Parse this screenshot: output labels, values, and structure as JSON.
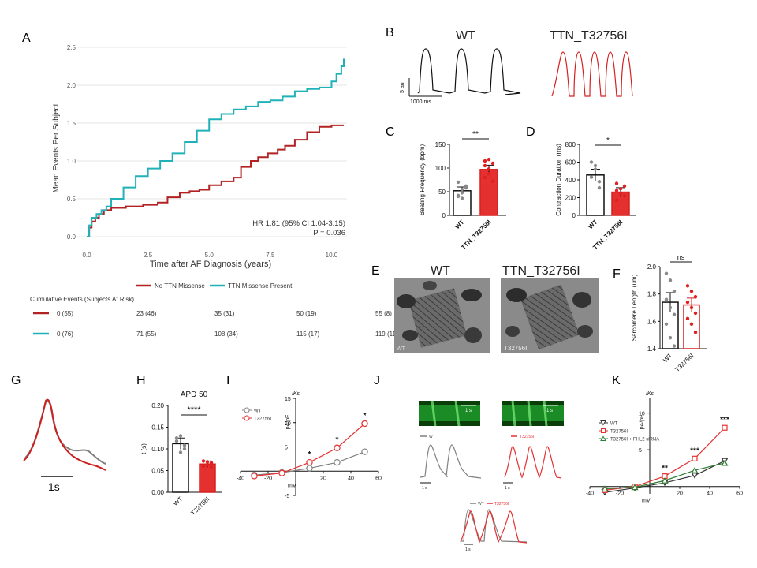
{
  "panel_labels": {
    "A": "A",
    "B": "B",
    "C": "C",
    "D": "D",
    "E": "E",
    "F": "F",
    "G": "G",
    "H": "H",
    "I": "I",
    "J": "J",
    "K": "K"
  },
  "colors": {
    "red": "#b22222",
    "cyan": "#20b2b8",
    "bright_red": "#e53030",
    "gray": "#808080",
    "dark_green": "#2e7d32"
  },
  "chart_data": [
    {
      "id": "A",
      "type": "line",
      "xlabel": "Time after AF Diagnosis (years)",
      "ylabel": "Mean Events Per Subject",
      "xlim": [
        0,
        10.5
      ],
      "ylim": [
        0,
        2.5
      ],
      "x_ticks": [
        "0.0",
        "2.5",
        "5.0",
        "7.5",
        "10.0"
      ],
      "y_ticks": [
        "0.0",
        "0.5",
        "1.0",
        "1.5",
        "2.0",
        "2.5"
      ],
      "grid": true,
      "annotation_hr": "HR 1.81 (95% CI 1.04-3.15)",
      "annotation_p": "P = 0.036",
      "legend_position": "bottom-center",
      "series": [
        {
          "name": "No TTN Missense",
          "color": "#b22222",
          "x": [
            0,
            0.1,
            0.2,
            0.35,
            0.5,
            0.7,
            1.0,
            1.6,
            2.3,
            2.9,
            3.3,
            3.8,
            4.2,
            4.6,
            5.0,
            5.5,
            6.0,
            6.3,
            6.7,
            7.0,
            7.4,
            7.8,
            8.1,
            8.5,
            9.0,
            9.5,
            10.0,
            10.5
          ],
          "y": [
            0,
            0.12,
            0.2,
            0.25,
            0.3,
            0.35,
            0.38,
            0.4,
            0.42,
            0.45,
            0.52,
            0.58,
            0.6,
            0.62,
            0.68,
            0.73,
            0.78,
            0.92,
            1.0,
            1.05,
            1.1,
            1.15,
            1.2,
            1.28,
            1.38,
            1.45,
            1.47,
            1.47
          ]
        },
        {
          "name": "TTN Missense Present",
          "color": "#20b2b8",
          "x": [
            0,
            0.1,
            0.2,
            0.4,
            0.6,
            0.8,
            1.0,
            1.5,
            2.0,
            2.5,
            3.0,
            3.5,
            4.0,
            4.5,
            5.0,
            5.5,
            6.0,
            6.5,
            7.0,
            7.5,
            8.0,
            8.5,
            9.0,
            9.5,
            10.0,
            10.2,
            10.4,
            10.5
          ],
          "y": [
            0,
            0.15,
            0.25,
            0.3,
            0.35,
            0.4,
            0.5,
            0.65,
            0.8,
            0.9,
            1.0,
            1.1,
            1.25,
            1.4,
            1.55,
            1.62,
            1.68,
            1.72,
            1.78,
            1.8,
            1.85,
            1.92,
            1.95,
            1.97,
            2.05,
            2.15,
            2.25,
            2.35
          ]
        }
      ],
      "risk_table": {
        "title": "Cumulative Events (Subjects At Risk)",
        "rows": [
          {
            "color": "#b22222",
            "cells": [
              "0 (55)",
              "23 (46)",
              "35 (31)",
              "50 (19)",
              "55 (8)"
            ]
          },
          {
            "color": "#20b2b8",
            "cells": [
              "0 (76)",
              "71 (55)",
              "108 (34)",
              "115 (17)",
              "119 (11)"
            ]
          }
        ]
      }
    },
    {
      "id": "C",
      "type": "bar",
      "ylabel": "Beating Frequency (bpm)",
      "categories": [
        "WT",
        "TTN_T32756I"
      ],
      "values": [
        52,
        97
      ],
      "errors": [
        8,
        9
      ],
      "points": [
        [
          42,
          36,
          58,
          70,
          48,
          62,
          40,
          55
        ],
        [
          80,
          98,
          110,
          115,
          88,
          72,
          105,
          118
        ]
      ],
      "ylim": [
        0,
        150
      ],
      "y_ticks": [
        "0",
        "50",
        "100",
        "150"
      ],
      "significance": "**"
    },
    {
      "id": "D",
      "type": "bar",
      "ylabel": "Contraction Duration (ms)",
      "categories": [
        "WT",
        "TTN_T32756I"
      ],
      "values": [
        455,
        262
      ],
      "errors": [
        65,
        50
      ],
      "points": [
        [
          600,
          520,
          310,
          430,
          560,
          380
        ],
        [
          360,
          300,
          220,
          170,
          250,
          330,
          280
        ]
      ],
      "ylim": [
        0,
        800
      ],
      "y_ticks": [
        "0",
        "200",
        "400",
        "600",
        "800"
      ],
      "significance": "*"
    },
    {
      "id": "F",
      "type": "bar",
      "ylabel": "Sarcomere Length (um)",
      "categories": [
        "WT",
        "T32756I"
      ],
      "values": [
        1.74,
        1.72
      ],
      "errors": [
        0.07,
        0.05
      ],
      "points": [
        [
          1.95,
          1.9,
          1.82,
          1.76,
          1.7,
          1.65,
          1.58,
          1.48,
          1.42
        ],
        [
          1.86,
          1.82,
          1.78,
          1.74,
          1.7,
          1.66,
          1.62,
          1.58,
          1.52
        ]
      ],
      "ylim": [
        1.4,
        2.0
      ],
      "y_ticks": [
        "1.4",
        "1.6",
        "1.8",
        "2.0"
      ],
      "significance": "ns"
    },
    {
      "id": "H",
      "type": "bar",
      "title": "APD 50",
      "ylabel": "t (s)",
      "categories": [
        "WT",
        "T32756I"
      ],
      "values": [
        0.112,
        0.065
      ],
      "errors": [
        0.013,
        0.007
      ],
      "points": [
        [
          0.125,
          0.13,
          0.1,
          0.118,
          0.092,
          0.108
        ],
        [
          0.06,
          0.064,
          0.068,
          0.062,
          0.07,
          0.058,
          0.072
        ]
      ],
      "ylim": [
        0,
        0.2
      ],
      "y_ticks": [
        "0.00",
        "0.05",
        "0.10",
        "0.15",
        "0.20"
      ],
      "significance": "****"
    },
    {
      "id": "I",
      "type": "line",
      "ylabel": "pA/pF",
      "xlabel": "mV",
      "current_label": "IKs",
      "xlim": [
        -40,
        60
      ],
      "ylim": [
        -5,
        15
      ],
      "x_ticks": [
        "-40",
        "-20",
        "20",
        "40",
        "60"
      ],
      "y_ticks": [
        "-5",
        "5",
        "10",
        "15"
      ],
      "legend_position": "top-left",
      "stars": [
        "*",
        "*",
        "*"
      ],
      "series": [
        {
          "name": "WT",
          "color": "#808080",
          "x": [
            -30,
            -10,
            10,
            30,
            50
          ],
          "y": [
            -0.8,
            -0.3,
            0.6,
            1.8,
            4.0
          ]
        },
        {
          "name": "T32756I",
          "color": "#e53030",
          "x": [
            -30,
            -10,
            10,
            30,
            50
          ],
          "y": [
            -1.0,
            -0.4,
            1.8,
            4.8,
            9.8
          ]
        }
      ]
    },
    {
      "id": "K",
      "type": "line",
      "ylabel": "pA/pF",
      "xlabel": "mV",
      "current_label": "IKs",
      "xlim": [
        -40,
        60
      ],
      "ylim": [
        -1,
        12
      ],
      "x_ticks": [
        "-40",
        "-20",
        "20",
        "40",
        "60"
      ],
      "y_ticks": [
        "5",
        "10"
      ],
      "legend_position": "top-left",
      "stars": [
        "**",
        "***",
        "***"
      ],
      "series": [
        {
          "name": "WT",
          "color": "#333333",
          "x": [
            -30,
            -10,
            10,
            30,
            50
          ],
          "y": [
            -0.8,
            -0.2,
            0.5,
            1.5,
            3.5
          ]
        },
        {
          "name": "T32756I",
          "color": "#e53030",
          "x": [
            -30,
            -10,
            10,
            30,
            50
          ],
          "y": [
            -0.5,
            0.0,
            1.4,
            3.8,
            8.0
          ]
        },
        {
          "name": "T32756I + FHL2 siRNA",
          "color": "#2e7d32",
          "x": [
            -30,
            -10,
            10,
            30,
            50
          ],
          "y": [
            -0.3,
            -0.1,
            0.8,
            2.2,
            3.2
          ]
        }
      ]
    }
  ],
  "panel_B": {
    "wt_label": "WT",
    "mut_label": "TTN_T32756I",
    "y_scale": "5 au",
    "x_scale": "1000 ms"
  },
  "panel_E": {
    "wt_label": "WT",
    "mut_label": "TTN_T32756I",
    "img_tag_wt": "WT",
    "img_tag_mut": "T32756I"
  },
  "panel_G": {
    "scale": "1s"
  },
  "panel_J": {
    "legend_wt": "WT",
    "legend_mut": "T32756I",
    "scale_time": "1 s",
    "scale_amp": "1 F/F0",
    "img_scale": "1 s"
  }
}
